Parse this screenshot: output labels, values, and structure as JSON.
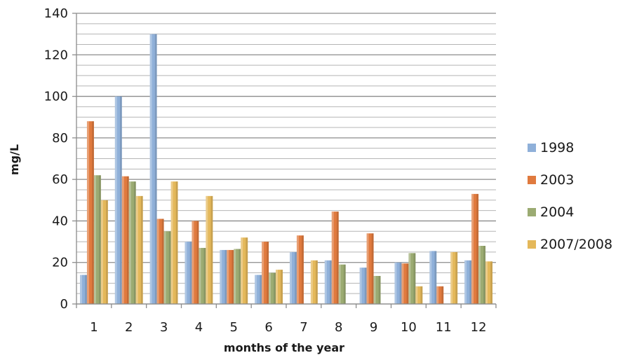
{
  "chart_data": {
    "type": "bar",
    "title": "",
    "xlabel": "months of the year",
    "ylabel": "mg/L",
    "ylim": [
      0,
      140
    ],
    "y_ticks": [
      0,
      20,
      40,
      60,
      80,
      100,
      120,
      140
    ],
    "y_minor_step": 5,
    "grid": true,
    "legend_position": "right",
    "categories": [
      "1",
      "2",
      "3",
      "4",
      "5",
      "6",
      "7",
      "8",
      "9",
      "10",
      "11",
      "12"
    ],
    "series": [
      {
        "name": "1998",
        "color": "#8fb0d9",
        "values": [
          14,
          100,
          130,
          30,
          26,
          14,
          25,
          21,
          17.5,
          20,
          25.5,
          21
        ]
      },
      {
        "name": "2003",
        "color": "#e07a3e",
        "values": [
          88,
          61.5,
          41,
          40,
          26,
          30,
          33,
          44.5,
          34,
          19.5,
          8.5,
          53
        ]
      },
      {
        "name": "2004",
        "color": "#9bab72",
        "values": [
          62,
          59,
          35,
          27,
          26.5,
          15,
          0,
          19,
          13.5,
          24.5,
          0,
          28
        ]
      },
      {
        "name": "2007/2008",
        "color": "#e4b85a",
        "values": [
          50,
          52,
          59,
          52,
          32,
          16.5,
          21,
          0,
          0,
          8.5,
          25,
          20.5
        ]
      }
    ]
  }
}
